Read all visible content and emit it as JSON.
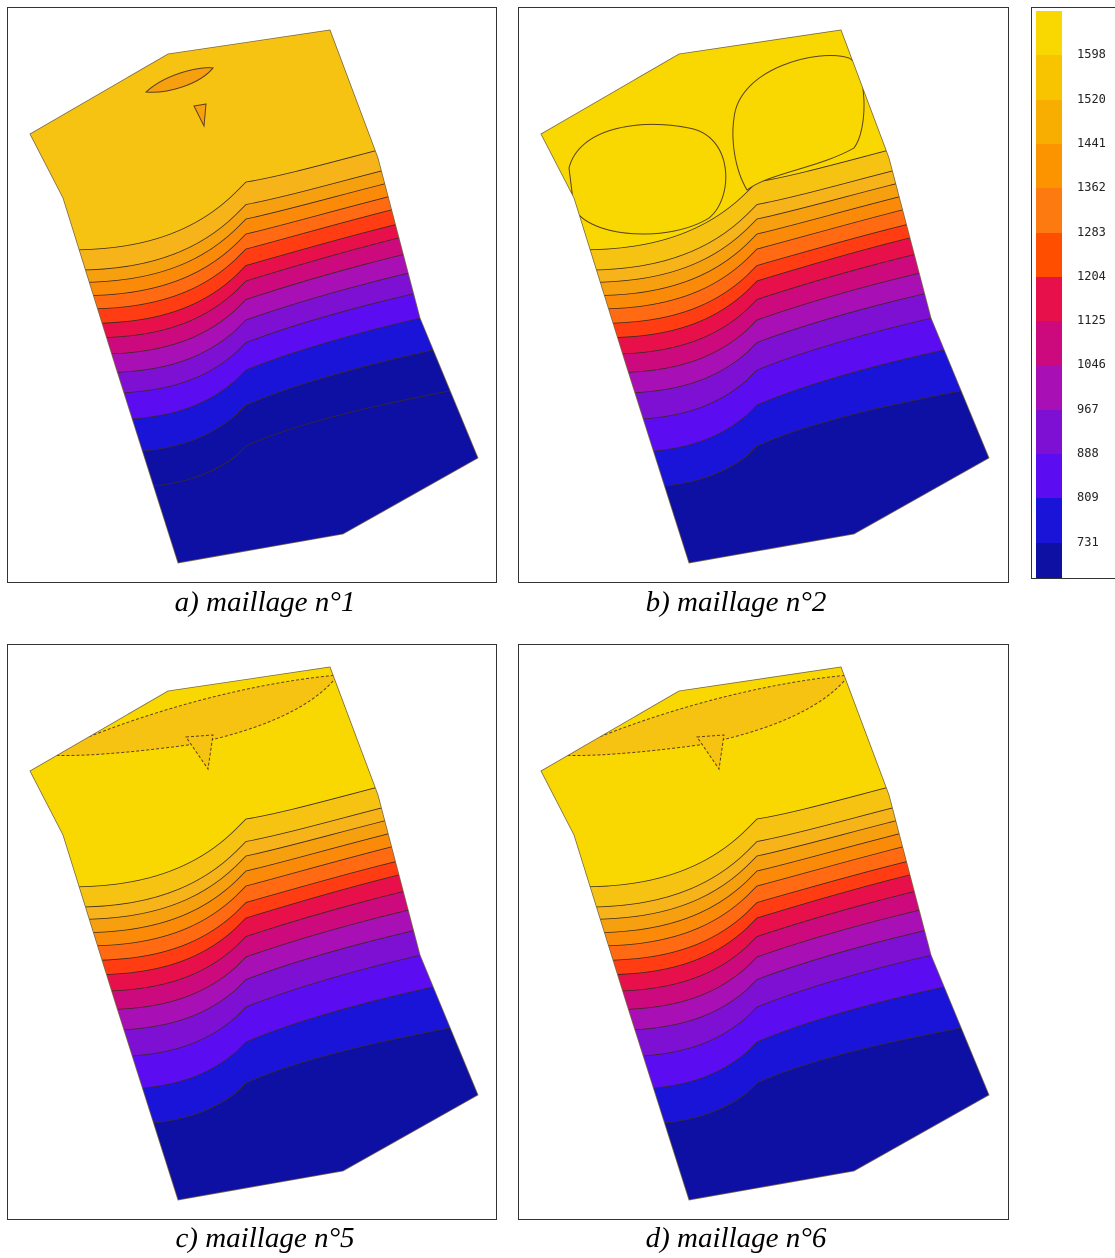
{
  "panels": [
    {
      "caption": "a) maillage n°1",
      "variant": 1
    },
    {
      "caption": "b) maillage n°2",
      "variant": 2
    },
    {
      "caption": "c) maillage n°5",
      "variant": 5
    },
    {
      "caption": "d) maillage n°6",
      "variant": 6
    }
  ],
  "legend": {
    "labels": [
      "1598",
      "1520",
      "1441",
      "1362",
      "1283",
      "1204",
      "1125",
      "1046",
      "967",
      "888",
      "809",
      "731"
    ],
    "colors": [
      "#f8d800",
      "#f8c400",
      "#f8ae00",
      "#fc9400",
      "#fd7a10",
      "#ff4e00",
      "#e8104a",
      "#cc0a7e",
      "#a80fb4",
      "#7e10d4",
      "#5c0cf0",
      "#1a14d8",
      "#0e10a4",
      "#0a0a6e"
    ]
  },
  "band_colors": [
    "#f8d800",
    "#f7c312",
    "#f6b31a",
    "#f7a00f",
    "#fb8a08",
    "#ff6a12",
    "#ff3c12",
    "#e8104a",
    "#cc0a7e",
    "#a80fb4",
    "#7e10d4",
    "#5c0cf0",
    "#1a14d8",
    "#0e10a4"
  ]
}
